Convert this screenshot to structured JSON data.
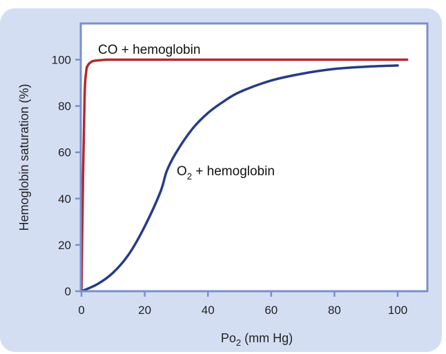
{
  "colors": {
    "panel_background": "#d4def3",
    "plot_background": "#ffffff",
    "frame": "#7b8fcd",
    "co_curve": "#b3282d",
    "o2_curve": "#253b86"
  },
  "chart_data": {
    "type": "line",
    "xlabel": "Po2 (mm Hg)",
    "xlabel_parts": {
      "base": "Po",
      "sub": "2",
      "rest": " (mm Hg)"
    },
    "ylabel": "Hemoglobin saturation (%)",
    "xlim": [
      0,
      109
    ],
    "ylim": [
      0,
      116
    ],
    "xticks": [
      0,
      20,
      40,
      60,
      80,
      100
    ],
    "yticks": [
      0,
      20,
      40,
      60,
      80,
      100
    ],
    "grid": false,
    "legend": "none",
    "series": [
      {
        "name": "CO + hemoglobin",
        "label_parts": {
          "base": "CO + hemoglobin",
          "sub": "",
          "rest": ""
        },
        "color": "#b3282d",
        "x": [
          0,
          0.5,
          1,
          1.5,
          2,
          3,
          4,
          6,
          8,
          10,
          20,
          40,
          60,
          80,
          100,
          103
        ],
        "y": [
          0,
          50,
          85,
          95,
          97.5,
          99,
          99.5,
          99.8,
          100,
          100,
          100,
          100,
          100,
          100,
          100,
          100
        ]
      },
      {
        "name": "O2 + hemoglobin",
        "label_parts": {
          "base": "O",
          "sub": "2",
          "rest": " + hemoglobin"
        },
        "color": "#253b86",
        "x": [
          0,
          5,
          10,
          15,
          20,
          25,
          27,
          30,
          35,
          40,
          45,
          50,
          60,
          70,
          80,
          90,
          100
        ],
        "y": [
          0,
          3,
          8,
          16,
          28,
          43,
          52,
          60,
          70,
          77,
          82,
          86,
          91,
          94,
          96,
          97,
          97.5
        ]
      }
    ]
  }
}
